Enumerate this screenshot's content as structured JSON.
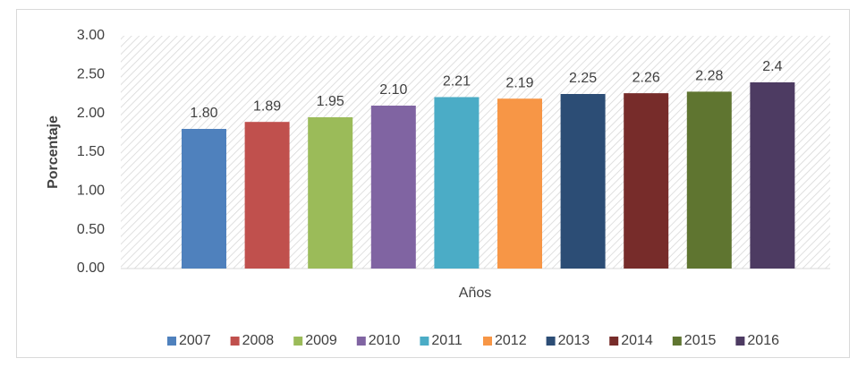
{
  "chart_data": {
    "type": "bar",
    "y_label": "Porcentaje",
    "x_label": "Años",
    "ylim": [
      0,
      3
    ],
    "yticks": [
      {
        "value": 0,
        "label": "0.00"
      },
      {
        "value": 0.5,
        "label": "0.50"
      },
      {
        "value": 1,
        "label": "1.00"
      },
      {
        "value": 1.5,
        "label": "1.50"
      },
      {
        "value": 2,
        "label": "2.00"
      },
      {
        "value": 2.5,
        "label": "2.50"
      },
      {
        "value": 3,
        "label": "3.00"
      }
    ],
    "grid": false,
    "legend": "bottom",
    "series": [
      {
        "name": "2007",
        "color": "#4f81bd",
        "values": [
          1.8
        ],
        "value_labels": [
          "1.80"
        ]
      },
      {
        "name": "2008",
        "color": "#c0504d",
        "values": [
          1.89
        ],
        "value_labels": [
          "1.89"
        ]
      },
      {
        "name": "2009",
        "color": "#9bbb59",
        "values": [
          1.95
        ],
        "value_labels": [
          "1.95"
        ]
      },
      {
        "name": "2010",
        "color": "#8064a2",
        "values": [
          2.1
        ],
        "value_labels": [
          "2.10"
        ]
      },
      {
        "name": "2011",
        "color": "#4bacc6",
        "values": [
          2.21
        ],
        "value_labels": [
          "2.21"
        ]
      },
      {
        "name": "2012",
        "color": "#f79646",
        "values": [
          2.19
        ],
        "value_labels": [
          "2.19"
        ]
      },
      {
        "name": "2013",
        "color": "#2c4d75",
        "values": [
          2.25
        ],
        "value_labels": [
          "2.25"
        ]
      },
      {
        "name": "2014",
        "color": "#772c2a",
        "values": [
          2.26
        ],
        "value_labels": [
          "2.26"
        ]
      },
      {
        "name": "2015",
        "color": "#5f7530",
        "values": [
          2.28
        ],
        "value_labels": [
          "2.28"
        ]
      },
      {
        "name": "2016",
        "color": "#4d3b62",
        "values": [
          2.4
        ],
        "value_labels": [
          "2.4"
        ]
      }
    ]
  }
}
